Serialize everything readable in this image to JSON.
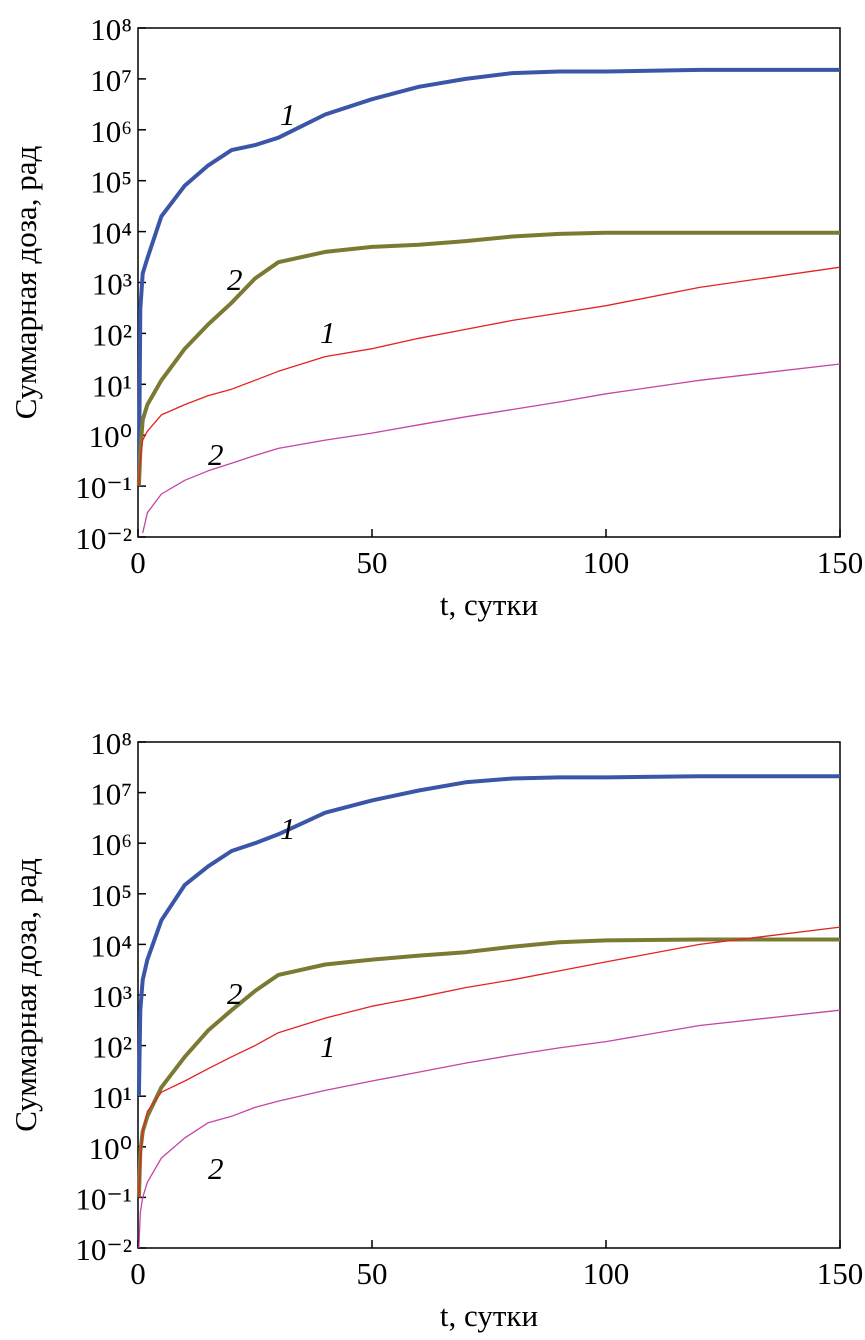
{
  "chart_data": [
    {
      "type": "line",
      "y_label": "Суммарная доза, рад",
      "x_label": "t, сутки",
      "log_y": true,
      "xlim": [
        0,
        150
      ],
      "xticks": [
        0,
        50,
        100,
        150
      ],
      "ylim": [
        0.01,
        100000000
      ],
      "yticks": [
        {
          "value": 0.01,
          "label": "10⁻²"
        },
        {
          "value": 0.1,
          "label": "10⁻¹"
        },
        {
          "value": 1,
          "label": "10⁰"
        },
        {
          "value": 10,
          "label": "10¹"
        },
        {
          "value": 100,
          "label": "10²"
        },
        {
          "value": 1000,
          "label": "10³"
        },
        {
          "value": 10000,
          "label": "10⁴"
        },
        {
          "value": 100000,
          "label": "10⁵"
        },
        {
          "value": 1000000,
          "label": "10⁶"
        },
        {
          "value": 10000000,
          "label": "10⁷"
        },
        {
          "value": 100000000,
          "label": "10⁸"
        }
      ],
      "x": [
        0.2,
        0.5,
        1,
        2,
        5,
        10,
        15,
        20,
        25,
        30,
        40,
        50,
        60,
        70,
        80,
        90,
        100,
        120,
        150
      ],
      "series": [
        {
          "name": "1",
          "color": "#3b56a8",
          "values": [
            0.1,
            300,
            1500,
            3000,
            20000,
            80000,
            200000,
            400000,
            500000,
            700000,
            2000000,
            4000000,
            7000000,
            10000000,
            13000000,
            14000000,
            14000000,
            15000000,
            15000000
          ]
        },
        {
          "name": "2",
          "color": "#7b7a32",
          "values": [
            0.1,
            0.5,
            2,
            4,
            12,
            50,
            150,
            400,
            1200,
            2500,
            4000,
            5000,
            5500,
            6500,
            8000,
            9000,
            9500,
            9500,
            9500
          ]
        },
        {
          "name": "1",
          "color": "#e52222",
          "values": [
            0.1,
            0.3,
            0.8,
            1.2,
            2.5,
            4,
            6,
            8,
            12,
            18,
            35,
            50,
            80,
            120,
            180,
            250,
            350,
            800,
            2000
          ]
        },
        {
          "name": "2",
          "color": "#c445a4",
          "values": [
            null,
            null,
            0.012,
            0.03,
            0.07,
            0.13,
            0.2,
            0.28,
            0.4,
            0.55,
            0.8,
            1.1,
            1.6,
            2.3,
            3.2,
            4.5,
            6.5,
            12,
            25
          ]
        }
      ]
    },
    {
      "type": "line",
      "y_label": "Суммарная доза, рад",
      "x_label": "t, сутки",
      "log_y": true,
      "xlim": [
        0,
        150
      ],
      "xticks": [
        0,
        50,
        100,
        150
      ],
      "ylim": [
        0.01,
        100000000
      ],
      "yticks": [
        {
          "value": 0.01,
          "label": "10⁻²"
        },
        {
          "value": 0.1,
          "label": "10⁻¹"
        },
        {
          "value": 1,
          "label": "10⁰"
        },
        {
          "value": 10,
          "label": "10¹"
        },
        {
          "value": 100,
          "label": "10²"
        },
        {
          "value": 1000,
          "label": "10³"
        },
        {
          "value": 10000,
          "label": "10⁴"
        },
        {
          "value": 100000,
          "label": "10⁵"
        },
        {
          "value": 1000000,
          "label": "10⁶"
        },
        {
          "value": 10000000,
          "label": "10⁷"
        },
        {
          "value": 100000000,
          "label": "10⁸"
        }
      ],
      "x": [
        0.2,
        0.5,
        1,
        2,
        5,
        10,
        15,
        20,
        25,
        30,
        40,
        50,
        60,
        70,
        80,
        90,
        100,
        120,
        150
      ],
      "series": [
        {
          "name": "1",
          "color": "#3b56a8",
          "values": [
            10,
            500,
            2000,
            5000,
            30000,
            150000,
            350000,
            700000,
            1000000,
            1500000,
            4000000,
            7000000,
            11000000,
            16000000,
            19000000,
            20000000,
            20000000,
            21000000,
            21000000
          ]
        },
        {
          "name": "2",
          "color": "#7b7a32",
          "values": [
            0.1,
            0.8,
            2,
            4,
            15,
            60,
            200,
            500,
            1200,
            2500,
            4000,
            5000,
            6000,
            7000,
            9000,
            11000,
            12000,
            12500,
            12500
          ]
        },
        {
          "name": "1",
          "color": "#e52222",
          "values": [
            0.1,
            0.5,
            2,
            5,
            12,
            20,
            35,
            60,
            100,
            180,
            350,
            600,
            900,
            1400,
            2000,
            3000,
            4500,
            10000,
            22000
          ]
        },
        {
          "name": "2",
          "color": "#c445a4",
          "values": [
            0.01,
            0.05,
            0.1,
            0.2,
            0.6,
            1.5,
            3,
            4,
            6,
            8,
            13,
            20,
            30,
            45,
            65,
            90,
            120,
            250,
            500
          ]
        }
      ]
    }
  ]
}
